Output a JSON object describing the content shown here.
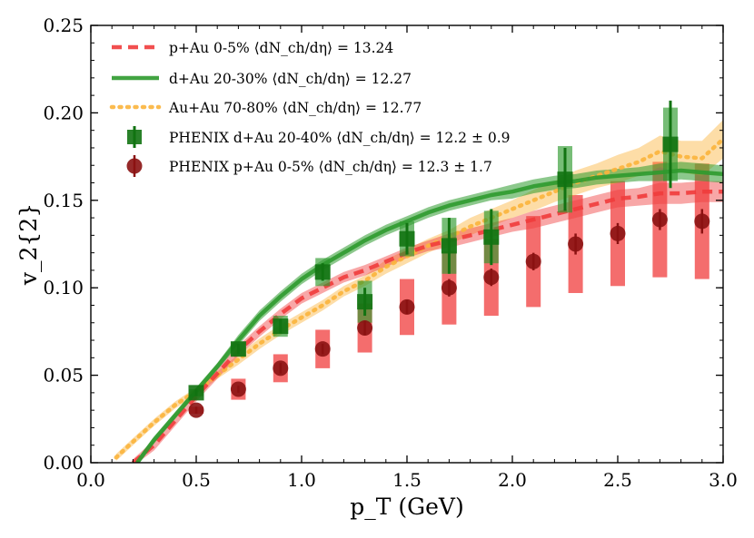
{
  "chart_data": {
    "type": "line",
    "xlabel": "p_T (GeV)",
    "ylabel": "v_2{2}",
    "xlim": [
      0.0,
      3.0
    ],
    "ylim": [
      0.0,
      0.25
    ],
    "xticks": [
      "0.0",
      "0.5",
      "1.0",
      "1.5",
      "2.0",
      "2.5",
      "3.0"
    ],
    "yticks": [
      "0.00",
      "0.05",
      "0.10",
      "0.15",
      "0.20",
      "0.25"
    ],
    "grid": false,
    "legend_position": "top-left",
    "colors": {
      "pAu": "#f03c3c",
      "dAu": "#2e9a2e",
      "AuAu": "#fbb43c",
      "phenix_dAu": "#127312",
      "phenix_pAu": "#8b1212"
    },
    "series": [
      {
        "name": "p+Au 0-5% ⟨dN_ch/dη⟩ = 13.24",
        "style": "dashed",
        "band": [
          [
            0.2,
            0.0,
            0.002
          ],
          [
            0.3,
            0.01,
            0.003
          ],
          [
            0.4,
            0.024,
            0.003
          ],
          [
            0.5,
            0.038,
            0.003
          ],
          [
            0.6,
            0.051,
            0.003
          ],
          [
            0.7,
            0.064,
            0.003
          ],
          [
            0.8,
            0.075,
            0.003
          ],
          [
            0.9,
            0.085,
            0.003
          ],
          [
            1.0,
            0.094,
            0.003
          ],
          [
            1.1,
            0.1,
            0.003
          ],
          [
            1.2,
            0.106,
            0.003
          ],
          [
            1.3,
            0.11,
            0.003
          ],
          [
            1.4,
            0.115,
            0.003
          ],
          [
            1.5,
            0.12,
            0.003
          ],
          [
            1.6,
            0.124,
            0.003
          ],
          [
            1.7,
            0.127,
            0.004
          ],
          [
            1.8,
            0.13,
            0.004
          ],
          [
            1.9,
            0.133,
            0.004
          ],
          [
            2.0,
            0.136,
            0.004
          ],
          [
            2.1,
            0.139,
            0.005
          ],
          [
            2.2,
            0.142,
            0.005
          ],
          [
            2.3,
            0.145,
            0.005
          ],
          [
            2.4,
            0.148,
            0.005
          ],
          [
            2.5,
            0.151,
            0.005
          ],
          [
            2.6,
            0.152,
            0.005
          ],
          [
            2.7,
            0.154,
            0.006
          ],
          [
            2.8,
            0.154,
            0.006
          ],
          [
            2.9,
            0.155,
            0.006
          ],
          [
            3.0,
            0.155,
            0.006
          ]
        ]
      },
      {
        "name": "d+Au 20-30% ⟨dN_ch/dη⟩ = 12.27",
        "style": "solid",
        "band": [
          [
            0.22,
            0.0,
            0.002
          ],
          [
            0.3,
            0.013,
            0.002
          ],
          [
            0.4,
            0.027,
            0.002
          ],
          [
            0.5,
            0.041,
            0.002
          ],
          [
            0.6,
            0.055,
            0.002
          ],
          [
            0.7,
            0.07,
            0.003
          ],
          [
            0.8,
            0.084,
            0.003
          ],
          [
            0.9,
            0.095,
            0.003
          ],
          [
            1.0,
            0.105,
            0.003
          ],
          [
            1.1,
            0.113,
            0.003
          ],
          [
            1.2,
            0.12,
            0.003
          ],
          [
            1.3,
            0.127,
            0.003
          ],
          [
            1.4,
            0.133,
            0.003
          ],
          [
            1.5,
            0.138,
            0.003
          ],
          [
            1.6,
            0.143,
            0.003
          ],
          [
            1.7,
            0.147,
            0.003
          ],
          [
            1.8,
            0.15,
            0.003
          ],
          [
            1.9,
            0.153,
            0.003
          ],
          [
            2.0,
            0.155,
            0.004
          ],
          [
            2.1,
            0.158,
            0.004
          ],
          [
            2.2,
            0.16,
            0.004
          ],
          [
            2.3,
            0.161,
            0.004
          ],
          [
            2.4,
            0.163,
            0.004
          ],
          [
            2.5,
            0.164,
            0.004
          ],
          [
            2.6,
            0.165,
            0.004
          ],
          [
            2.7,
            0.166,
            0.005
          ],
          [
            2.8,
            0.167,
            0.005
          ],
          [
            2.9,
            0.166,
            0.005
          ],
          [
            3.0,
            0.165,
            0.005
          ]
        ]
      },
      {
        "name": "Au+Au 70-80% ⟨dN_ch/dη⟩ = 12.77",
        "style": "dotted",
        "band": [
          [
            0.12,
            0.003,
            0.002
          ],
          [
            0.2,
            0.012,
            0.002
          ],
          [
            0.3,
            0.023,
            0.002
          ],
          [
            0.4,
            0.033,
            0.002
          ],
          [
            0.5,
            0.041,
            0.002
          ],
          [
            0.6,
            0.05,
            0.002
          ],
          [
            0.7,
            0.059,
            0.003
          ],
          [
            0.8,
            0.068,
            0.003
          ],
          [
            0.9,
            0.076,
            0.003
          ],
          [
            1.0,
            0.083,
            0.003
          ],
          [
            1.1,
            0.09,
            0.003
          ],
          [
            1.2,
            0.098,
            0.003
          ],
          [
            1.3,
            0.104,
            0.003
          ],
          [
            1.4,
            0.112,
            0.004
          ],
          [
            1.5,
            0.118,
            0.004
          ],
          [
            1.6,
            0.124,
            0.004
          ],
          [
            1.7,
            0.129,
            0.004
          ],
          [
            1.8,
            0.135,
            0.005
          ],
          [
            1.9,
            0.14,
            0.005
          ],
          [
            2.0,
            0.145,
            0.005
          ],
          [
            2.1,
            0.15,
            0.006
          ],
          [
            2.2,
            0.155,
            0.006
          ],
          [
            2.3,
            0.16,
            0.007
          ],
          [
            2.4,
            0.164,
            0.007
          ],
          [
            2.5,
            0.168,
            0.008
          ],
          [
            2.6,
            0.172,
            0.008
          ],
          [
            2.7,
            0.178,
            0.009
          ],
          [
            2.8,
            0.175,
            0.009
          ],
          [
            2.9,
            0.174,
            0.01
          ],
          [
            3.0,
            0.185,
            0.011
          ]
        ]
      },
      {
        "name": "PHENIX d+Au 20-40% ⟨dN_ch/dη⟩ = 12.2 ± 0.9",
        "style": "square-markers",
        "points": [
          [
            0.5,
            0.04,
            0.002,
            0.002
          ],
          [
            0.7,
            0.065,
            0.003,
            0.004
          ],
          [
            0.9,
            0.078,
            0.004,
            0.006
          ],
          [
            1.1,
            0.109,
            0.005,
            0.008
          ],
          [
            1.3,
            0.092,
            0.008,
            0.012
          ],
          [
            1.5,
            0.128,
            0.009,
            0.01
          ],
          [
            1.7,
            0.124,
            0.016,
            0.016
          ],
          [
            1.9,
            0.129,
            0.016,
            0.015
          ],
          [
            2.25,
            0.162,
            0.018,
            0.019
          ],
          [
            2.75,
            0.182,
            0.025,
            0.021
          ]
        ]
      },
      {
        "name": "PHENIX p+Au 0-5% ⟨dN_ch/dη⟩ = 12.3 ± 1.7",
        "style": "circle-markers",
        "points": [
          [
            0.5,
            0.03,
            0.002,
            0.002
          ],
          [
            0.7,
            0.042,
            0.002,
            0.006
          ],
          [
            0.9,
            0.054,
            0.003,
            0.008
          ],
          [
            1.1,
            0.065,
            0.003,
            0.011
          ],
          [
            1.3,
            0.077,
            0.004,
            0.014
          ],
          [
            1.5,
            0.089,
            0.004,
            0.016
          ],
          [
            1.7,
            0.1,
            0.005,
            0.021
          ],
          [
            1.9,
            0.106,
            0.005,
            0.022
          ],
          [
            2.1,
            0.115,
            0.005,
            0.026
          ],
          [
            2.3,
            0.125,
            0.006,
            0.028
          ],
          [
            2.5,
            0.131,
            0.006,
            0.03
          ],
          [
            2.7,
            0.139,
            0.006,
            0.033
          ],
          [
            2.9,
            0.138,
            0.007,
            0.033
          ]
        ]
      }
    ]
  }
}
